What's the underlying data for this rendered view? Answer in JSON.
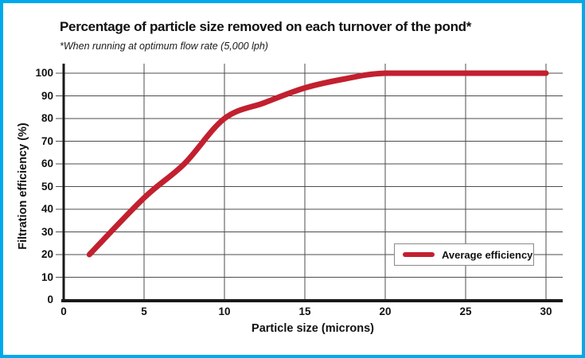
{
  "title": "Percentage of particle size removed on each turnover of the pond*",
  "subtitle": "*When running at optimum flow rate (5,000 lph)",
  "colors": {
    "frame_border": "#00A9EC",
    "curve": "#C2202F",
    "grid": "#4D4D4D",
    "axis": "#1A1A1A",
    "legend_border": "#8A8A8A"
  },
  "chart_data": {
    "type": "line",
    "title": "Percentage of particle size removed on each turnover of the pond*",
    "subtitle": "*When running at optimum flow rate (5,000 lph)",
    "xlabel": "Particle size (microns)",
    "ylabel": "Filtration efficiency (%)",
    "xlim": [
      0,
      30
    ],
    "ylim": [
      0,
      100
    ],
    "xticks": [
      0,
      5,
      10,
      15,
      20,
      25,
      30
    ],
    "yticks": [
      0,
      10,
      20,
      30,
      40,
      50,
      60,
      70,
      80,
      90,
      100
    ],
    "grid": true,
    "legend": {
      "position": "inside lower right",
      "entries": [
        "Average efficiency"
      ]
    },
    "series": [
      {
        "name": "Average efficiency",
        "color": "#C2202F",
        "points": [
          [
            1.6,
            20
          ],
          [
            5,
            45
          ],
          [
            7.5,
            60
          ],
          [
            10,
            80
          ],
          [
            12.5,
            87
          ],
          [
            15,
            93.5
          ],
          [
            17.5,
            97.5
          ],
          [
            20,
            100
          ],
          [
            25,
            100
          ],
          [
            30,
            100
          ]
        ]
      }
    ]
  }
}
